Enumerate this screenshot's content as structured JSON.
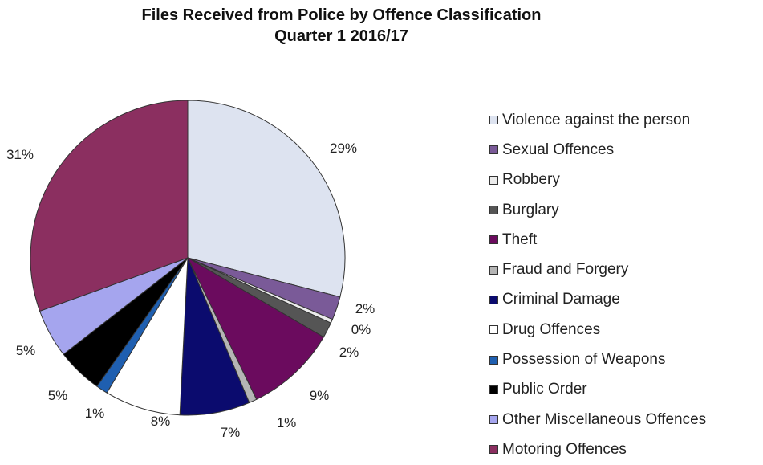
{
  "chart_data": {
    "type": "pie",
    "title": "Files Received from Police by Offence Classification",
    "subtitle": "Quarter 1 2016/17",
    "legend_position": "right",
    "slices": [
      {
        "name": "Violence against the person",
        "value": 29,
        "label": "29%",
        "color": "#dde3f0"
      },
      {
        "name": "Sexual Offences",
        "value": 2.4,
        "label": "2%",
        "color": "#7a5a98"
      },
      {
        "name": "Robbery",
        "value": 0.4,
        "label": "0%",
        "color": "#ebebeb"
      },
      {
        "name": "Burglary",
        "value": 1.6,
        "label": "2%",
        "color": "#555555"
      },
      {
        "name": "Theft",
        "value": 9.4,
        "label": "9%",
        "color": "#6b0b5e"
      },
      {
        "name": "Fraud and Forgery",
        "value": 0.8,
        "label": "1%",
        "color": "#b5b5b5"
      },
      {
        "name": "Criminal Damage",
        "value": 7.2,
        "label": "7%",
        "color": "#0b0b6e"
      },
      {
        "name": "Drug Offences",
        "value": 7.8,
        "label": "8%",
        "color": "#ffffff"
      },
      {
        "name": "Possession of Weapons",
        "value": 1.2,
        "label": "1%",
        "color": "#1f5fb0"
      },
      {
        "name": "Public Order",
        "value": 4.7,
        "label": "5%",
        "color": "#000000"
      },
      {
        "name": "Other Miscellaneous Offences",
        "value": 5.0,
        "label": "5%",
        "color": "#a5a5ee"
      },
      {
        "name": "Motoring Offences",
        "value": 30.5,
        "label": "31%",
        "color": "#8b2f60"
      }
    ]
  }
}
